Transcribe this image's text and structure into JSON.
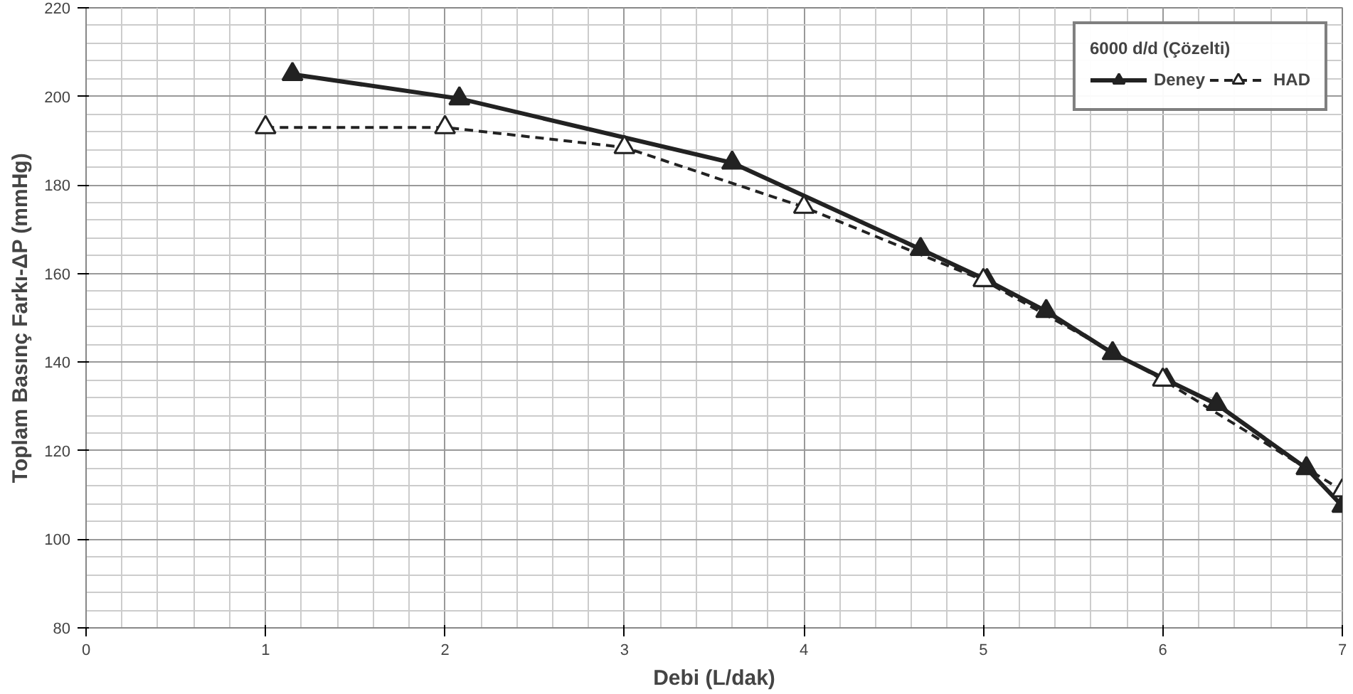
{
  "chart_data": {
    "type": "line",
    "xlabel": "Debi (L/dak)",
    "ylabel": "Toplam Basınç Farkı-ΔP (mmHg)",
    "legend_title": "6000 d/d (Çözelti)",
    "xlim": [
      0,
      7
    ],
    "ylim": [
      80,
      220
    ],
    "xticks": [
      0,
      1,
      2,
      3,
      4,
      5,
      6,
      7
    ],
    "yticks": [
      80,
      100,
      120,
      140,
      160,
      180,
      200,
      220
    ],
    "grid": true,
    "legend": "top right",
    "marker": "triangle",
    "series": [
      {
        "name": "Deney",
        "color": "#222222",
        "line_style": "solid",
        "x": [
          1.15,
          2.08,
          3.6,
          4.65,
          5.02,
          5.35,
          5.72,
          6.02,
          6.3,
          6.8,
          7.0
        ],
        "values": [
          205,
          199.5,
          185,
          165.5,
          158.5,
          151.5,
          142,
          136,
          130.5,
          116,
          107.5
        ]
      },
      {
        "name": "HAD",
        "color": "#222222",
        "line_style": "dashed",
        "x": [
          1,
          2,
          3,
          4,
          5,
          6,
          7
        ],
        "values": [
          193,
          193,
          188.5,
          175,
          158.5,
          136,
          111
        ]
      }
    ]
  }
}
